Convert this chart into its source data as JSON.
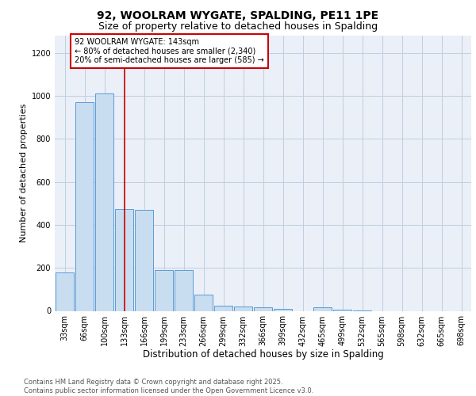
{
  "title1": "92, WOOLRAM WYGATE, SPALDING, PE11 1PE",
  "title2": "Size of property relative to detached houses in Spalding",
  "xlabel": "Distribution of detached houses by size in Spalding",
  "ylabel": "Number of detached properties",
  "categories": [
    "33sqm",
    "66sqm",
    "100sqm",
    "133sqm",
    "166sqm",
    "199sqm",
    "233sqm",
    "266sqm",
    "299sqm",
    "332sqm",
    "366sqm",
    "399sqm",
    "432sqm",
    "465sqm",
    "499sqm",
    "532sqm",
    "565sqm",
    "598sqm",
    "632sqm",
    "665sqm",
    "698sqm"
  ],
  "values": [
    180,
    970,
    1010,
    475,
    470,
    190,
    190,
    75,
    25,
    20,
    15,
    10,
    0,
    15,
    5,
    2,
    0,
    0,
    0,
    0,
    0
  ],
  "bar_color": "#c9ddf0",
  "bar_edge_color": "#5b9bd5",
  "red_line_index": 3,
  "annotation_text": "92 WOOLRAM WYGATE: 143sqm\n← 80% of detached houses are smaller (2,340)\n20% of semi-detached houses are larger (585) →",
  "annotation_box_color": "white",
  "annotation_box_edge_color": "#cc0000",
  "red_line_color": "#cc0000",
  "ylim": [
    0,
    1280
  ],
  "yticks": [
    0,
    200,
    400,
    600,
    800,
    1000,
    1200
  ],
  "grid_color": "#c0cedf",
  "bg_color": "#eaeff8",
  "footer_text": "Contains HM Land Registry data © Crown copyright and database right 2025.\nContains public sector information licensed under the Open Government Licence v3.0.",
  "title1_fontsize": 10,
  "title2_fontsize": 9,
  "xlabel_fontsize": 8.5,
  "ylabel_fontsize": 8,
  "tick_fontsize": 7,
  "annotation_fontsize": 7,
  "footer_fontsize": 6
}
